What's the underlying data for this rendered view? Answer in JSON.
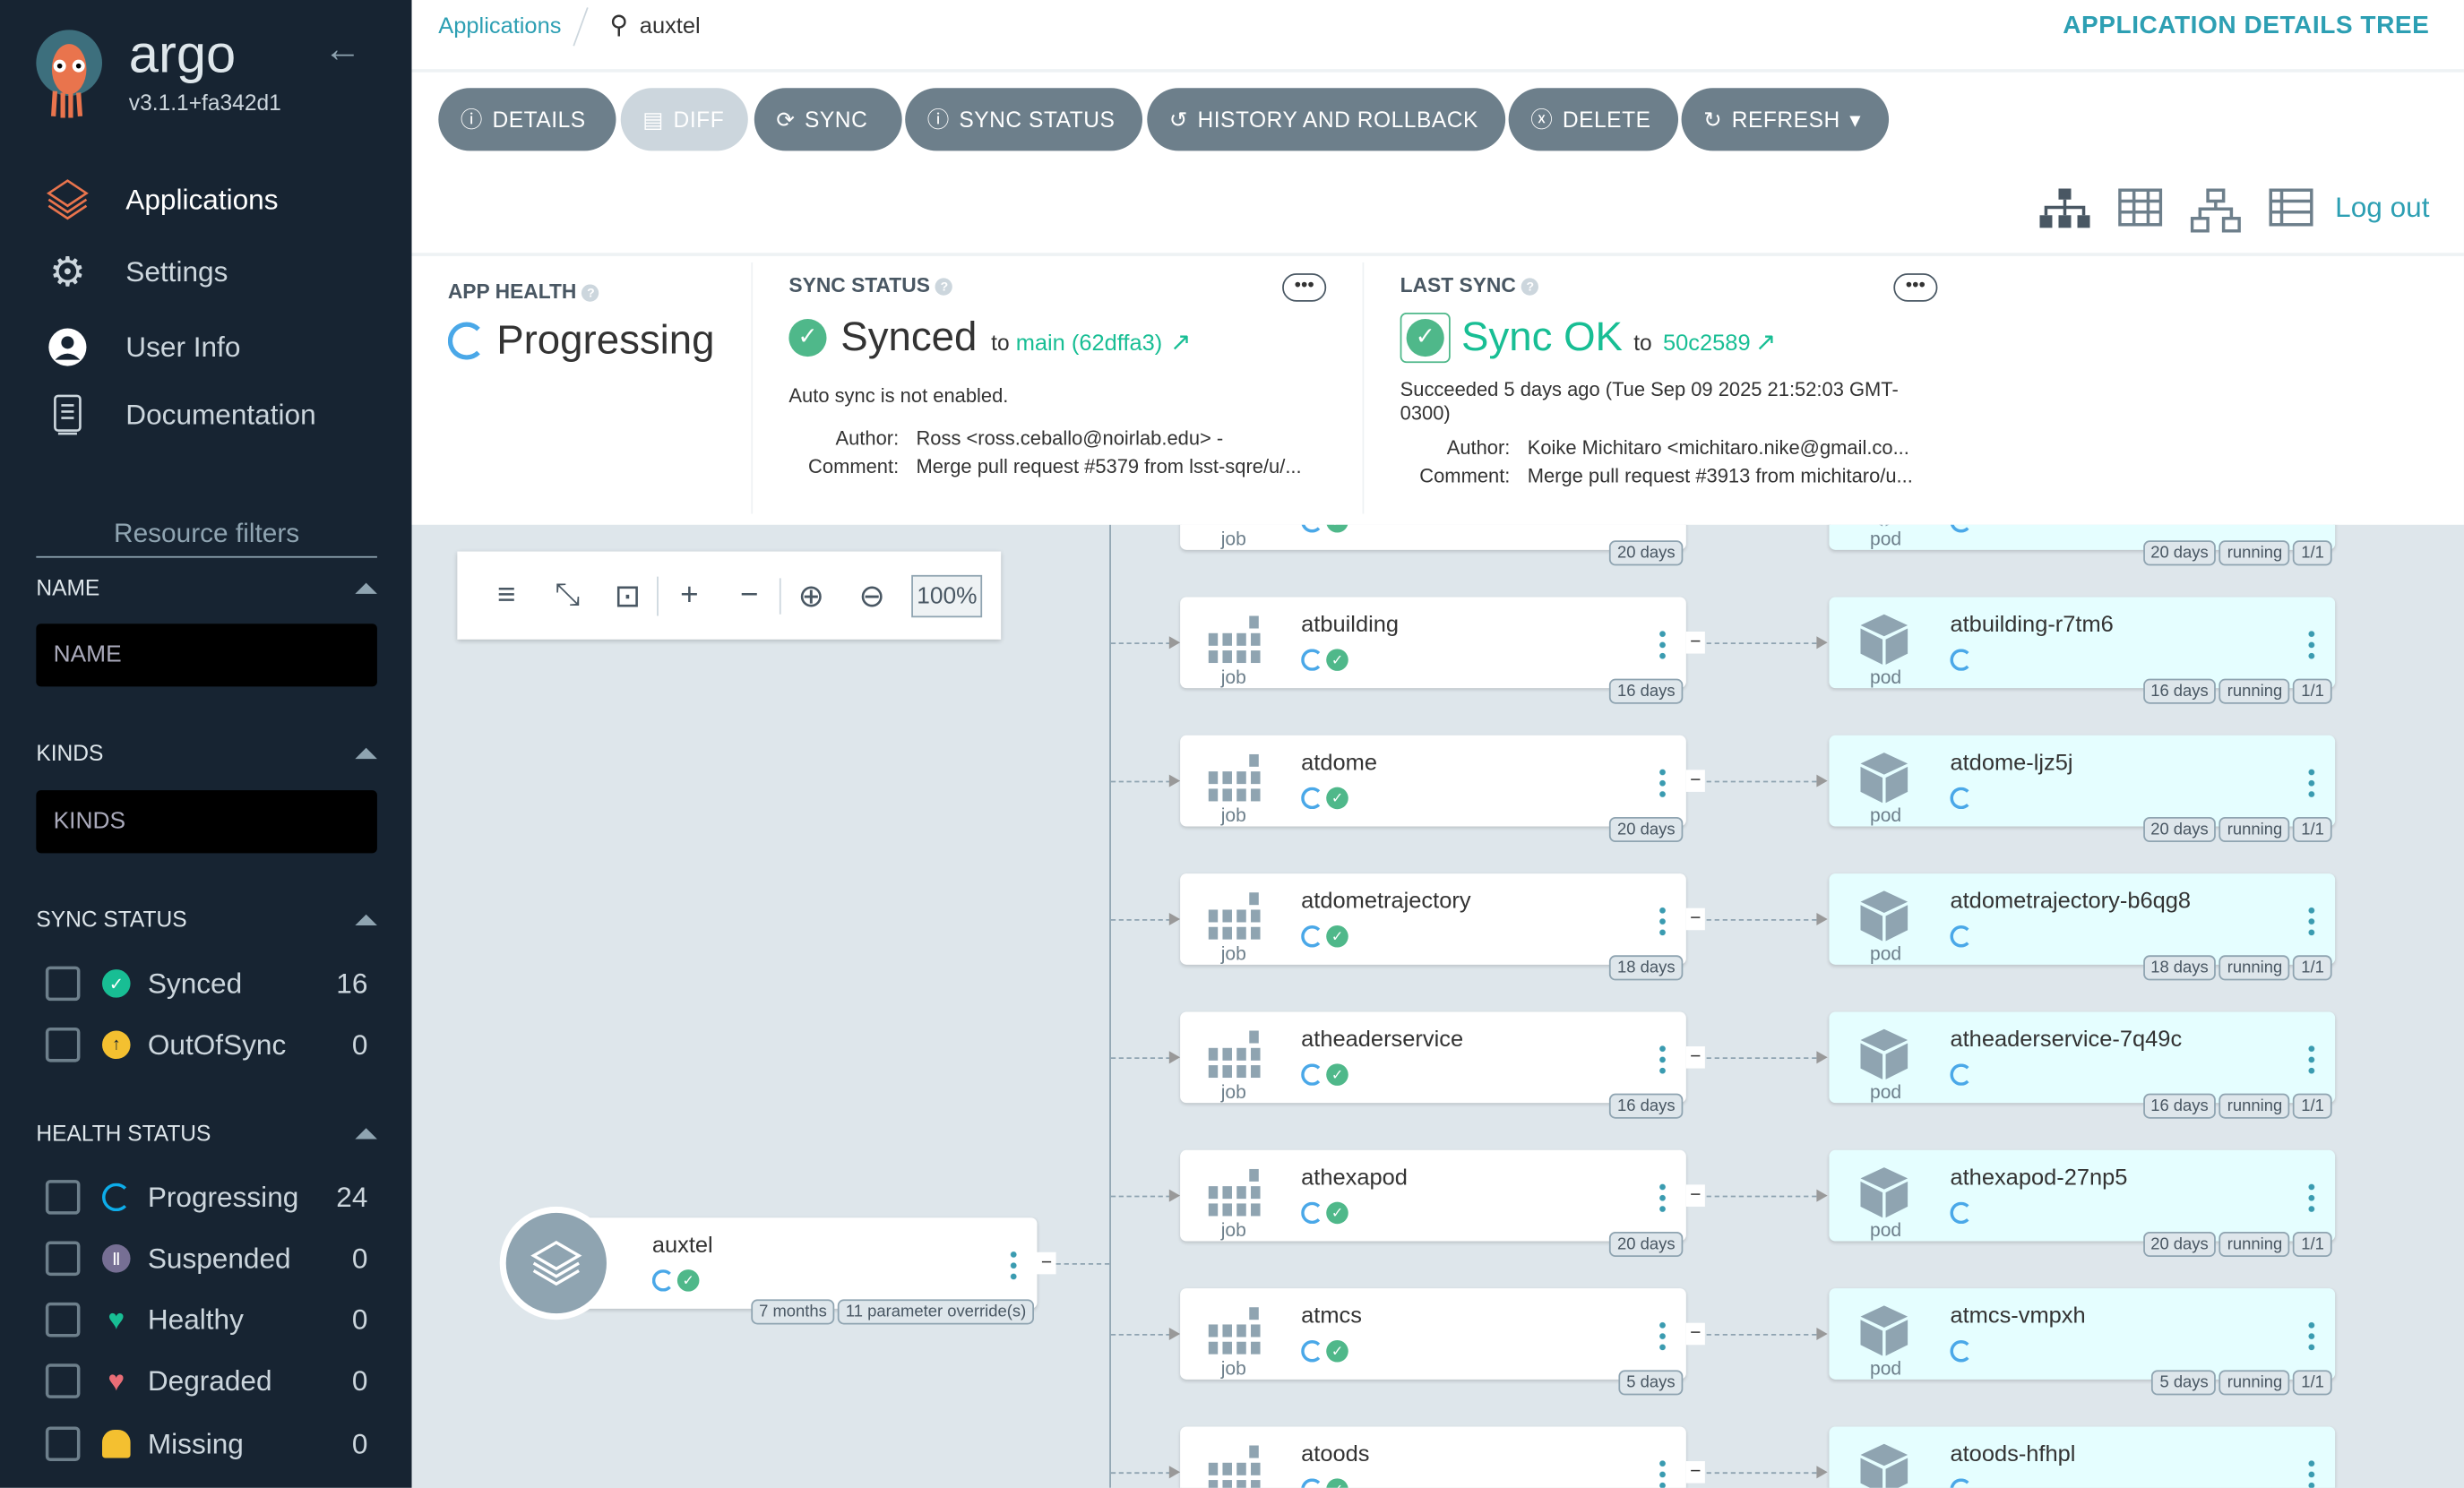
{
  "sidebar": {
    "brand": "argo",
    "version": "v3.1.1+fa342d1",
    "nav": [
      {
        "label": "Applications",
        "icon": "layers-icon"
      },
      {
        "label": "Settings",
        "icon": "gear-icon"
      },
      {
        "label": "User Info",
        "icon": "user-icon"
      },
      {
        "label": "Documentation",
        "icon": "book-icon"
      }
    ],
    "filters_title": "Resource filters",
    "name": {
      "title": "NAME",
      "placeholder": "NAME"
    },
    "kinds": {
      "title": "KINDS",
      "placeholder": "KINDS"
    },
    "sync_status": {
      "title": "SYNC STATUS",
      "items": [
        {
          "label": "Synced",
          "count": "16",
          "color": "#18be94"
        },
        {
          "label": "OutOfSync",
          "count": "0",
          "color": "#f4c030"
        }
      ]
    },
    "health_status": {
      "title": "HEALTH STATUS",
      "items": [
        {
          "label": "Progressing",
          "count": "24",
          "color": "#0dadea"
        },
        {
          "label": "Suspended",
          "count": "0",
          "color": "#766f94"
        },
        {
          "label": "Healthy",
          "count": "0",
          "color": "#18be94"
        },
        {
          "label": "Degraded",
          "count": "0",
          "color": "#e96d76"
        },
        {
          "label": "Missing",
          "count": "0",
          "color": "#f4c030"
        }
      ]
    }
  },
  "topbar": {
    "breadcrumb": "Applications",
    "current": "auxtel",
    "page_title": "APPLICATION DETAILS TREE"
  },
  "toolbar": {
    "buttons": [
      "DETAILS",
      "DIFF",
      "SYNC",
      "SYNC STATUS",
      "HISTORY AND ROLLBACK",
      "DELETE",
      "REFRESH"
    ],
    "logout": "Log out"
  },
  "summary": {
    "health": {
      "label": "APP HEALTH",
      "value": "Progressing"
    },
    "sync": {
      "label": "SYNC STATUS",
      "value": "Synced",
      "to": "to",
      "revision": "main (62dffa3)",
      "auto": "Auto sync is not enabled.",
      "author_label": "Author:",
      "author": "Ross <ross.ceballo@noirlab.edu> -",
      "comment_label": "Comment:",
      "comment": "Merge pull request #5379 from lsst-sqre/u/..."
    },
    "last": {
      "label": "LAST SYNC",
      "value": "Sync OK",
      "to": "to",
      "revision": "50c2589",
      "succeeded": "Succeeded 5 days ago (Tue Sep 09 2025 21:52:03 GMT-0300)",
      "author_label": "Author:",
      "author": "Koike Michitaro <michitaro.nike@gmail.co...",
      "comment_label": "Comment:",
      "comment": "Merge pull request #3913 from michitaro/u..."
    }
  },
  "graph": {
    "zoom": "100%",
    "app": {
      "name": "auxtel",
      "age": "7 months",
      "overrides": "11 parameter override(s)"
    },
    "top_partial": {
      "job_age": "20 days",
      "pod_age": "20 days",
      "pod_status": "running",
      "pod_ready": "1/1",
      "job_kind": "job",
      "pod_kind": "pod"
    },
    "rows": [
      {
        "job": "atbuilding",
        "job_age": "16 days",
        "pod": "atbuilding-r7tm6",
        "pod_age": "16 days"
      },
      {
        "job": "atdome",
        "job_age": "20 days",
        "pod": "atdome-ljz5j",
        "pod_age": "20 days"
      },
      {
        "job": "atdometrajectory",
        "job_age": "18 days",
        "pod": "atdometrajectory-b6qg8",
        "pod_age": "18 days"
      },
      {
        "job": "atheaderservice",
        "job_age": "16 days",
        "pod": "atheaderservice-7q49c",
        "pod_age": "16 days"
      },
      {
        "job": "athexapod",
        "job_age": "20 days",
        "pod": "athexapod-27np5",
        "pod_age": "20 days"
      },
      {
        "job": "atmcs",
        "job_age": "5 days",
        "pod": "atmcs-vmpxh",
        "pod_age": "5 days"
      },
      {
        "job": "atoods",
        "job_age": "",
        "pod": "atoods-hfhpl",
        "pod_age": ""
      }
    ],
    "kinds": {
      "job": "job",
      "pod": "pod"
    },
    "pod_status": "running",
    "pod_ready": "1/1"
  }
}
